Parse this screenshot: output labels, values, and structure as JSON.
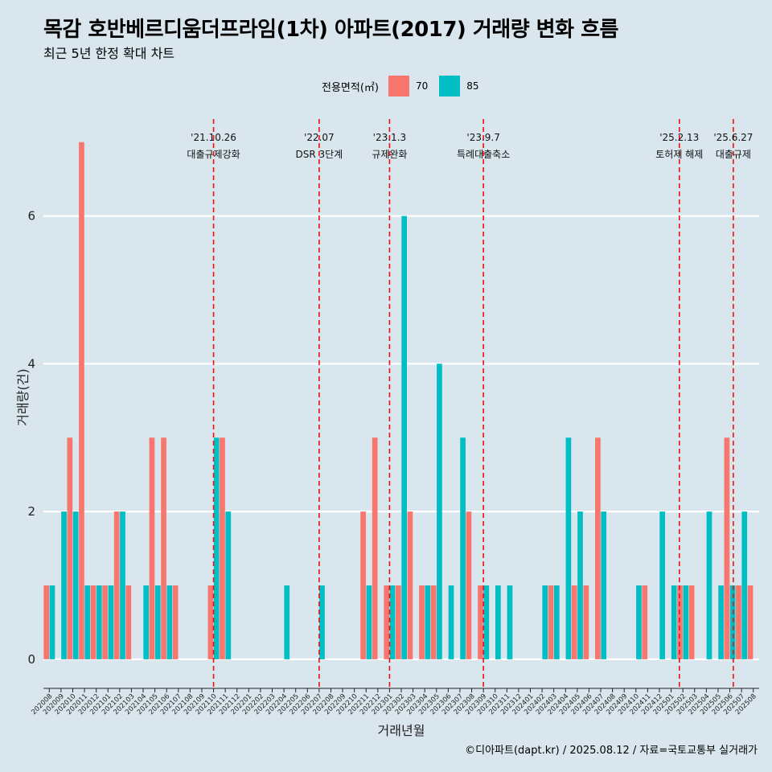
{
  "header": {
    "title": "목감 호반베르디움더프라임(1차) 아파트(2017) 거래량 변화 흐름",
    "subtitle": "최근 5년 한정 확대 차트"
  },
  "legend": {
    "title": "전용면적(㎡)",
    "items": [
      {
        "label": "70",
        "color": "#F8766D"
      },
      {
        "label": "85",
        "color": "#00BFC4"
      }
    ]
  },
  "caption": "©디아파트(dapt.kr) / 2025.08.12 / 자료=국토교통부 실거래가",
  "chart_data": {
    "type": "bar",
    "xlabel": "거래년월",
    "ylabel": "거래량(건)",
    "ylim": [
      -0.35,
      7.4
    ],
    "yticks": [
      0,
      2,
      4,
      6
    ],
    "grid": true,
    "legend_position": "top",
    "categories": [
      "202008",
      "202009",
      "202010",
      "202011",
      "202012",
      "202101",
      "202102",
      "202103",
      "202104",
      "202105",
      "202106",
      "202107",
      "202108",
      "202109",
      "202110",
      "202111",
      "202112",
      "202201",
      "202202",
      "202203",
      "202204",
      "202205",
      "202206",
      "202207",
      "202208",
      "202209",
      "202210",
      "202211",
      "202212",
      "202301",
      "202302",
      "202303",
      "202304",
      "202305",
      "202306",
      "202307",
      "202308",
      "202309",
      "202310",
      "202311",
      "202312",
      "202401",
      "202402",
      "202403",
      "202404",
      "202405",
      "202406",
      "202407",
      "202408",
      "202409",
      "202410",
      "202411",
      "202412",
      "202501",
      "202502",
      "202503",
      "202504",
      "202505",
      "202506",
      "202507",
      "202508"
    ],
    "series": [
      {
        "name": "70",
        "color": "#F8766D",
        "values": [
          1,
          0,
          3,
          7,
          1,
          1,
          2,
          1,
          0,
          3,
          3,
          1,
          0,
          0,
          1,
          3,
          0,
          0,
          0,
          0,
          0,
          0,
          0,
          0,
          0,
          0,
          0,
          2,
          3,
          1,
          1,
          2,
          1,
          1,
          0,
          0,
          2,
          1,
          0,
          0,
          0,
          0,
          0,
          1,
          0,
          1,
          1,
          3,
          0,
          0,
          0,
          1,
          0,
          0,
          1,
          1,
          0,
          0,
          3,
          1,
          1
        ]
      },
      {
        "name": "85",
        "color": "#00BFC4",
        "values": [
          1,
          2,
          2,
          1,
          1,
          1,
          2,
          0,
          1,
          1,
          1,
          0,
          0,
          0,
          3,
          2,
          0,
          0,
          0,
          0,
          1,
          0,
          0,
          1,
          0,
          0,
          0,
          1,
          0,
          1,
          6,
          0,
          1,
          4,
          1,
          3,
          0,
          1,
          1,
          1,
          0,
          0,
          1,
          1,
          3,
          2,
          0,
          2,
          0,
          0,
          1,
          0,
          2,
          1,
          1,
          0,
          2,
          1,
          1,
          2,
          0
        ]
      }
    ],
    "annotations": [
      {
        "date": "'21.10.26",
        "label": "대출규제강화",
        "position": 14.5
      },
      {
        "date": "'22.07",
        "label": "DSR 3단계",
        "position": 23.5
      },
      {
        "date": "'23.1.3",
        "label": "규제완화",
        "position": 29.5
      },
      {
        "date": "'23.9.7",
        "label": "특례대출축소",
        "position": 37.5
      },
      {
        "date": "'25.2.13",
        "label": "토허제 해제",
        "position": 54.2
      },
      {
        "date": "'25.6.27",
        "label": "대출규제",
        "position": 58.8
      }
    ]
  }
}
